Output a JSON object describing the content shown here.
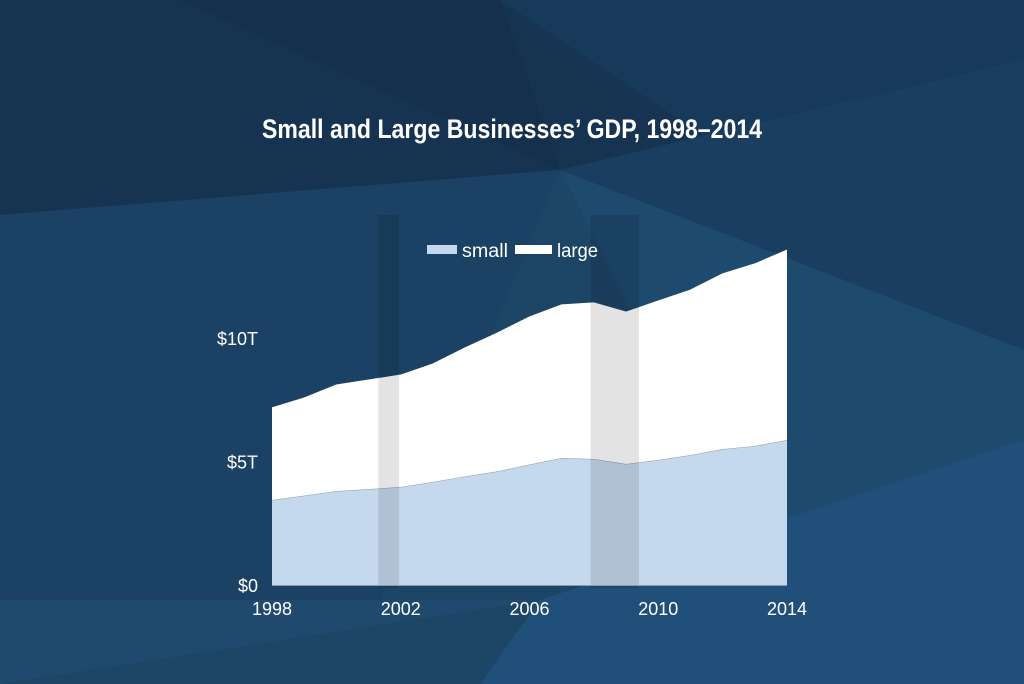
{
  "chart_data": {
    "type": "area",
    "stacked": true,
    "title": "Small and Large Businesses’ GDP, 1998–2014",
    "xlabel": "",
    "ylabel": "",
    "x": [
      1998,
      1999,
      2000,
      2001,
      2002,
      2003,
      2004,
      2005,
      2006,
      2007,
      2008,
      2009,
      2010,
      2011,
      2012,
      2013,
      2014
    ],
    "x_ticks": [
      1998,
      2002,
      2006,
      2010,
      2014
    ],
    "x_tick_labels": [
      "1998",
      "2002",
      "2006",
      "2010",
      "2014"
    ],
    "y_ticks": [
      0,
      5,
      10
    ],
    "y_tick_labels": [
      "$0",
      "$5T",
      "$10T"
    ],
    "xlim": [
      1998,
      2014
    ],
    "ylim": [
      0,
      15
    ],
    "grid": false,
    "legend_position": "top-center",
    "series": [
      {
        "name": "small",
        "color": "#c5d9ee",
        "values": [
          3.44,
          3.62,
          3.8,
          3.88,
          3.97,
          4.17,
          4.4,
          4.6,
          4.88,
          5.14,
          5.1,
          4.9,
          5.06,
          5.26,
          5.5,
          5.63,
          5.87
        ]
      },
      {
        "name": "large",
        "color": "#ffffff",
        "values": [
          3.73,
          3.95,
          4.3,
          4.42,
          4.53,
          4.78,
          5.2,
          5.6,
          5.97,
          6.2,
          6.32,
          6.15,
          6.44,
          6.68,
          7.1,
          7.37,
          7.69
        ]
      }
    ],
    "shaded_periods": [
      [
        2001.3,
        2001.95
      ],
      [
        2007.9,
        2009.4
      ]
    ]
  }
}
